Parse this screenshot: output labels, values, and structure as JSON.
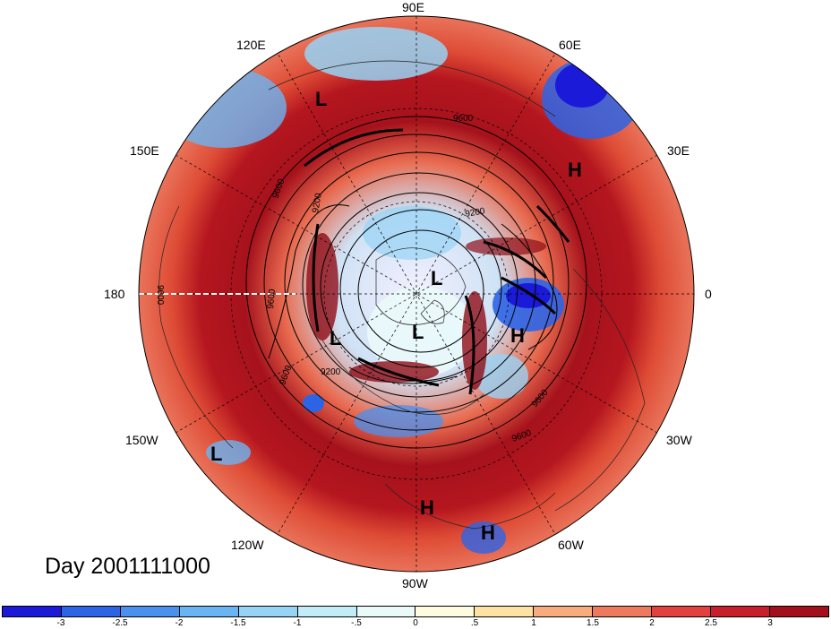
{
  "map": {
    "title": "Day 2001111000",
    "longitude_labels": [
      {
        "id": "90e",
        "text": "90E"
      },
      {
        "id": "120e",
        "text": "120E"
      },
      {
        "id": "60e",
        "text": "60E"
      },
      {
        "id": "150e",
        "text": "150E"
      },
      {
        "id": "30e",
        "text": "30E"
      },
      {
        "id": "180",
        "text": "180"
      },
      {
        "id": "0",
        "text": "0"
      },
      {
        "id": "150w",
        "text": "150W"
      },
      {
        "id": "30w",
        "text": "30W"
      },
      {
        "id": "120w",
        "text": "120W"
      },
      {
        "id": "60w",
        "text": "60W"
      },
      {
        "id": "90w",
        "text": "90W"
      }
    ],
    "pressure_centers": [
      "L",
      "H",
      "L",
      "L",
      "H",
      "L",
      "H",
      "H",
      "L"
    ],
    "contour_labels": [
      "9600",
      "9600",
      "9600",
      "9600",
      "9600",
      "9600",
      "9600",
      "9200",
      "9200",
      "9200"
    ],
    "colors": {
      "ocean_strong_positive": "#a6121c",
      "positive": "#de3a2e",
      "weak_positive": "#f5a98a",
      "neutral": "#fffbe6",
      "weak_negative": "#bde6f5",
      "negative": "#5a9ef0",
      "strong_negative": "#1b2bd6"
    }
  },
  "colorbar": {
    "colors": [
      "#1a1ad8",
      "#2d64e6",
      "#4a90ef",
      "#6ab4f3",
      "#97d3f5",
      "#c2ecf7",
      "#eafaf9",
      "#fffbe0",
      "#fde2a4",
      "#f6ac7e",
      "#ee7a5e",
      "#e1423e",
      "#c81f2c",
      "#a30f1c"
    ],
    "ticks": [
      "-3",
      "-2.5",
      "-2",
      "-1.5",
      "-1",
      "-.5",
      "0",
      ".5",
      "1",
      "1.5",
      "2",
      "2.5",
      "3"
    ]
  }
}
